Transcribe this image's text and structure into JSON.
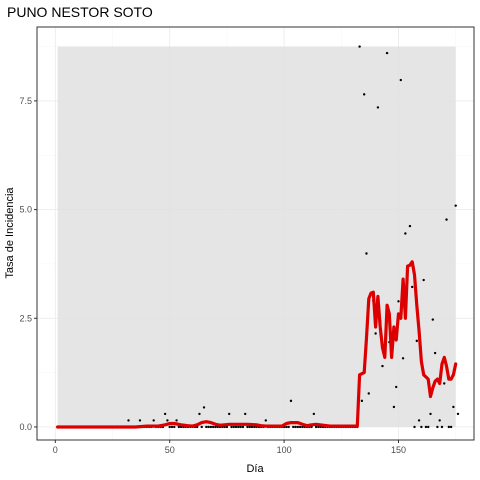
{
  "chart_data": {
    "type": "line",
    "title": "PUNO NESTOR SOTO",
    "xlabel": "Día",
    "ylabel": "Tasa de Incidencia",
    "xlim": [
      -8,
      183
    ],
    "ylim": [
      -0.3,
      9.2
    ],
    "x_ticks": [
      0,
      50,
      100,
      150
    ],
    "y_ticks": [
      0.0,
      2.5,
      5.0,
      7.5
    ],
    "x_tick_labels": [
      "0",
      "50",
      "100",
      "150"
    ],
    "y_tick_labels": [
      "0.0",
      "2.5",
      "5.0",
      "7.5"
    ],
    "grid": true,
    "legend": "none",
    "shaded_band": {
      "x": [
        1,
        175
      ],
      "y": [
        0,
        8.75
      ],
      "color": "#e0e0e0"
    },
    "colors": {
      "line": "#dd0000",
      "points": "#000000",
      "panel_border": "#333333",
      "grid": "#ebebeb"
    },
    "series": [
      {
        "type": "scatter",
        "points": [
          [
            1,
            0
          ],
          [
            2,
            0
          ],
          [
            3,
            0
          ],
          [
            4,
            0
          ],
          [
            5,
            0
          ],
          [
            6,
            0
          ],
          [
            7,
            0
          ],
          [
            8,
            0
          ],
          [
            9,
            0
          ],
          [
            10,
            0
          ],
          [
            11,
            0
          ],
          [
            12,
            0
          ],
          [
            13,
            0
          ],
          [
            14,
            0
          ],
          [
            15,
            0
          ],
          [
            16,
            0
          ],
          [
            17,
            0
          ],
          [
            18,
            0
          ],
          [
            19,
            0
          ],
          [
            20,
            0
          ],
          [
            21,
            0
          ],
          [
            22,
            0
          ],
          [
            23,
            0
          ],
          [
            24,
            0
          ],
          [
            25,
            0
          ],
          [
            26,
            0
          ],
          [
            27,
            0
          ],
          [
            28,
            0
          ],
          [
            29,
            0
          ],
          [
            30,
            0
          ],
          [
            31,
            0
          ],
          [
            32,
            0.15
          ],
          [
            33,
            0
          ],
          [
            34,
            0
          ],
          [
            35,
            0
          ],
          [
            36,
            0
          ],
          [
            37,
            0.15
          ],
          [
            38,
            0
          ],
          [
            39,
            0
          ],
          [
            40,
            0
          ],
          [
            41,
            0
          ],
          [
            42,
            0
          ],
          [
            43,
            0.15
          ],
          [
            44,
            0
          ],
          [
            45,
            0
          ],
          [
            46,
            0
          ],
          [
            47,
            0
          ],
          [
            48,
            0.3
          ],
          [
            49,
            0.15
          ],
          [
            50,
            0
          ],
          [
            51,
            0
          ],
          [
            52,
            0
          ],
          [
            53,
            0.15
          ],
          [
            54,
            0
          ],
          [
            55,
            0
          ],
          [
            56,
            0
          ],
          [
            57,
            0
          ],
          [
            58,
            0
          ],
          [
            59,
            0
          ],
          [
            60,
            0
          ],
          [
            61,
            0
          ],
          [
            62,
            0
          ],
          [
            63,
            0.3
          ],
          [
            64,
            0
          ],
          [
            65,
            0.45
          ],
          [
            66,
            0
          ],
          [
            67,
            0
          ],
          [
            68,
            0
          ],
          [
            69,
            0
          ],
          [
            70,
            0
          ],
          [
            71,
            0
          ],
          [
            72,
            0
          ],
          [
            73,
            0
          ],
          [
            74,
            0
          ],
          [
            75,
            0
          ],
          [
            76,
            0.3
          ],
          [
            77,
            0
          ],
          [
            78,
            0
          ],
          [
            79,
            0
          ],
          [
            80,
            0
          ],
          [
            81,
            0
          ],
          [
            82,
            0
          ],
          [
            83,
            0.3
          ],
          [
            84,
            0
          ],
          [
            85,
            0
          ],
          [
            86,
            0
          ],
          [
            87,
            0
          ],
          [
            88,
            0
          ],
          [
            89,
            0
          ],
          [
            90,
            0
          ],
          [
            91,
            0
          ],
          [
            92,
            0.15
          ],
          [
            93,
            0
          ],
          [
            94,
            0
          ],
          [
            95,
            0
          ],
          [
            96,
            0
          ],
          [
            97,
            0
          ],
          [
            98,
            0
          ],
          [
            99,
            0
          ],
          [
            100,
            0
          ],
          [
            101,
            0
          ],
          [
            102,
            0
          ],
          [
            103,
            0.6
          ],
          [
            104,
            0
          ],
          [
            105,
            0
          ],
          [
            106,
            0
          ],
          [
            107,
            0
          ],
          [
            108,
            0
          ],
          [
            109,
            0
          ],
          [
            110,
            0
          ],
          [
            111,
            0
          ],
          [
            112,
            0
          ],
          [
            113,
            0.3
          ],
          [
            114,
            0
          ],
          [
            115,
            0
          ],
          [
            116,
            0
          ],
          [
            117,
            0
          ],
          [
            118,
            0
          ],
          [
            119,
            0
          ],
          [
            120,
            0
          ],
          [
            121,
            0
          ],
          [
            122,
            0
          ],
          [
            123,
            0
          ],
          [
            124,
            0
          ],
          [
            125,
            0
          ],
          [
            126,
            0
          ],
          [
            127,
            0
          ],
          [
            128,
            0
          ],
          [
            129,
            0
          ],
          [
            130,
            0
          ],
          [
            131,
            0
          ],
          [
            132,
            0
          ],
          [
            133,
            8.75
          ],
          [
            134,
            0.6
          ],
          [
            135,
            7.65
          ],
          [
            136,
            3.99
          ],
          [
            137,
            0.77
          ],
          [
            138,
            3.07
          ],
          [
            139,
            2.9
          ],
          [
            140,
            2.15
          ],
          [
            141,
            7.35
          ],
          [
            142,
            2.44
          ],
          [
            143,
            1.4
          ],
          [
            144,
            1.84
          ],
          [
            145,
            8.6
          ],
          [
            146,
            1.95
          ],
          [
            147,
            2.15
          ],
          [
            148,
            0.46
          ],
          [
            149,
            0.92
          ],
          [
            150,
            2.89
          ],
          [
            151,
            7.98
          ],
          [
            152,
            1.58
          ],
          [
            153,
            4.45
          ],
          [
            154,
            3.7
          ],
          [
            155,
            4.62
          ],
          [
            156,
            3.22
          ],
          [
            157,
            0
          ],
          [
            158,
            1.98
          ],
          [
            159,
            0.15
          ],
          [
            160,
            0
          ],
          [
            161,
            3.38
          ],
          [
            162,
            0
          ],
          [
            163,
            0
          ],
          [
            164,
            0.3
          ],
          [
            165,
            2.47
          ],
          [
            166,
            1.7
          ],
          [
            167,
            0
          ],
          [
            168,
            0.15
          ],
          [
            169,
            0
          ],
          [
            170,
            1.0
          ],
          [
            171,
            4.77
          ],
          [
            172,
            0
          ],
          [
            173,
            0
          ],
          [
            174,
            0.46
          ],
          [
            175,
            5.09
          ],
          [
            176,
            0.3
          ]
        ]
      },
      {
        "type": "line",
        "points": [
          [
            1,
            0
          ],
          [
            10,
            0
          ],
          [
            20,
            0
          ],
          [
            30,
            0
          ],
          [
            35,
            0
          ],
          [
            40,
            0.02
          ],
          [
            45,
            0.02
          ],
          [
            48,
            0.05
          ],
          [
            50,
            0.08
          ],
          [
            52,
            0.08
          ],
          [
            55,
            0.05
          ],
          [
            58,
            0.03
          ],
          [
            60,
            0.02
          ],
          [
            62,
            0.05
          ],
          [
            64,
            0.1
          ],
          [
            66,
            0.12
          ],
          [
            68,
            0.1
          ],
          [
            70,
            0.06
          ],
          [
            72,
            0.04
          ],
          [
            74,
            0.05
          ],
          [
            76,
            0.06
          ],
          [
            78,
            0.06
          ],
          [
            80,
            0.06
          ],
          [
            84,
            0.06
          ],
          [
            88,
            0.05
          ],
          [
            90,
            0.03
          ],
          [
            92,
            0.02
          ],
          [
            95,
            0.02
          ],
          [
            99,
            0.02
          ],
          [
            101,
            0.08
          ],
          [
            103,
            0.1
          ],
          [
            106,
            0.1
          ],
          [
            108,
            0.06
          ],
          [
            110,
            0.03
          ],
          [
            112,
            0.05
          ],
          [
            114,
            0.06
          ],
          [
            117,
            0.04
          ],
          [
            120,
            0.02
          ],
          [
            125,
            0.02
          ],
          [
            130,
            0.02
          ],
          [
            132,
            0.02
          ],
          [
            133,
            1.2
          ],
          [
            135,
            1.25
          ],
          [
            136,
            2.05
          ],
          [
            137,
            2.95
          ],
          [
            138,
            3.08
          ],
          [
            139,
            3.1
          ],
          [
            140,
            2.3
          ],
          [
            141,
            3.0
          ],
          [
            142,
            2.3
          ],
          [
            143,
            1.82
          ],
          [
            144,
            1.6
          ],
          [
            145,
            2.8
          ],
          [
            146,
            2.6
          ],
          [
            147,
            1.6
          ],
          [
            148,
            2.3
          ],
          [
            149,
            2.0
          ],
          [
            150,
            2.6
          ],
          [
            151,
            2.5
          ],
          [
            152,
            3.4
          ],
          [
            153,
            2.5
          ],
          [
            154,
            3.7
          ],
          [
            155,
            3.72
          ],
          [
            156,
            3.8
          ],
          [
            157,
            3.5
          ],
          [
            158,
            2.8
          ],
          [
            159,
            2.2
          ],
          [
            160,
            1.5
          ],
          [
            161,
            1.2
          ],
          [
            162,
            1.15
          ],
          [
            163,
            1.1
          ],
          [
            164,
            0.7
          ],
          [
            165,
            0.9
          ],
          [
            166,
            1.05
          ],
          [
            167,
            1.1
          ],
          [
            168,
            1.0
          ],
          [
            169,
            1.45
          ],
          [
            170,
            1.6
          ],
          [
            171,
            1.4
          ],
          [
            172,
            1.1
          ],
          [
            173,
            1.1
          ],
          [
            174,
            1.2
          ],
          [
            175,
            1.45
          ]
        ]
      }
    ]
  }
}
